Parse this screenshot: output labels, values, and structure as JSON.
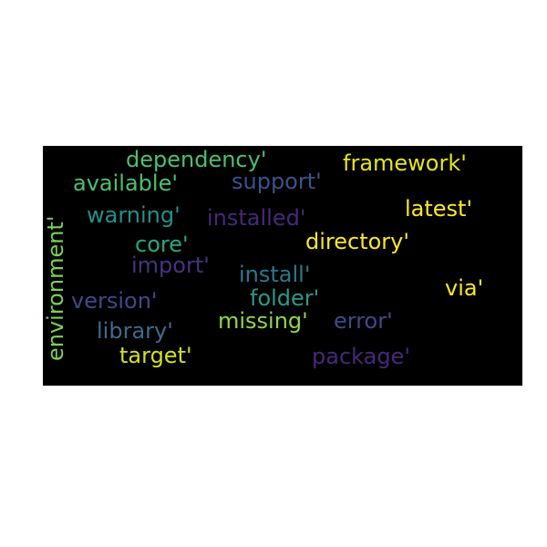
{
  "words": [
    {
      "text": "dependency'",
      "color": "#4ac16d"
    },
    {
      "text": "framework'",
      "color": "#e7e419"
    },
    {
      "text": "available'",
      "color": "#4ac16d"
    },
    {
      "text": "support'",
      "color": "#3b528b"
    },
    {
      "text": "latest'",
      "color": "#fde725"
    },
    {
      "text": "warning'",
      "color": "#21918c"
    },
    {
      "text": "installed'",
      "color": "#482878"
    },
    {
      "text": "environment'",
      "color": "#7ad151"
    },
    {
      "text": "core'",
      "color": "#22a884"
    },
    {
      "text": "directory'",
      "color": "#fde725"
    },
    {
      "text": "import'",
      "color": "#46327e"
    },
    {
      "text": "install'",
      "color": "#2a788e"
    },
    {
      "text": "version'",
      "color": "#3e4a89"
    },
    {
      "text": "folder'",
      "color": "#2a9a8a"
    },
    {
      "text": "via'",
      "color": "#fde725"
    },
    {
      "text": "library'",
      "color": "#3d6b8e"
    },
    {
      "text": "missing'",
      "color": "#8fd744"
    },
    {
      "text": "error'",
      "color": "#3e4a89"
    },
    {
      "text": "target'",
      "color": "#d2e21b"
    },
    {
      "text": "package'",
      "color": "#482878"
    }
  ]
}
